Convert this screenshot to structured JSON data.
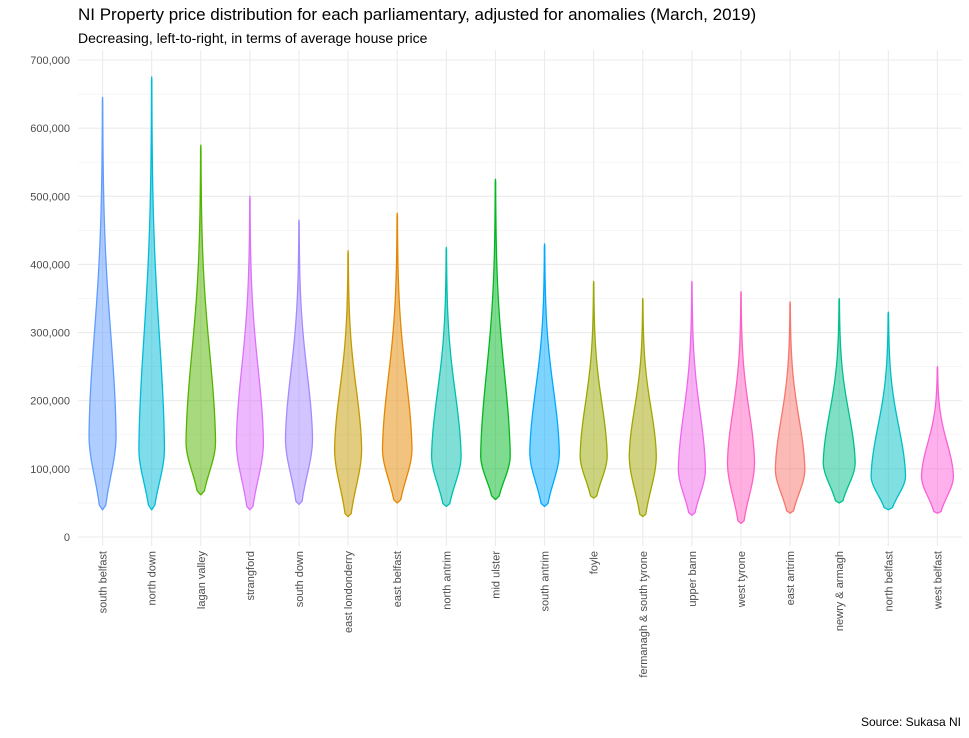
{
  "chart_data": {
    "type": "violin",
    "title": "NI Property price distribution for each parliamentary, adjusted for anomalies (March, 2019)",
    "subtitle": "Decreasing, left-to-right, in terms of average house price",
    "caption": "Source: Sukasa NI",
    "xlabel": "",
    "ylabel": "",
    "ylim": [
      0,
      700000
    ],
    "y_ticks": [
      0,
      100000,
      200000,
      300000,
      400000,
      500000,
      600000,
      700000
    ],
    "y_tick_labels": [
      "0",
      "100,000",
      "200,000",
      "300,000",
      "400,000",
      "500,000",
      "600,000",
      "700,000"
    ],
    "grid": true,
    "legend": "none",
    "categories": [
      "south belfast",
      "north down",
      "lagan valley",
      "strangford",
      "south down",
      "east londonderry",
      "east belfast",
      "north antrim",
      "mid ulster",
      "south antrim",
      "foyle",
      "fermanagh & south tyrone",
      "upper bann",
      "west tyrone",
      "east antrim",
      "newry & armagh",
      "north belfast",
      "west belfast"
    ],
    "colors": [
      "#619CFF",
      "#00BCD8",
      "#53B400",
      "#DB72FB",
      "#A58AFF",
      "#C49A00",
      "#E58700",
      "#00C0AF",
      "#00B81F",
      "#00A9FF",
      "#99A800",
      "#A3A500",
      "#F066EA",
      "#FF61C3",
      "#F8766D",
      "#00C08B",
      "#00BFC4",
      "#FB61D7"
    ],
    "series": [
      {
        "min": 40000,
        "max": 645000,
        "mode": 150000,
        "width": 0.55
      },
      {
        "min": 40000,
        "max": 675000,
        "mode": 130000,
        "width": 0.52
      },
      {
        "min": 62000,
        "max": 575000,
        "mode": 140000,
        "width": 0.6
      },
      {
        "min": 40000,
        "max": 500000,
        "mode": 140000,
        "width": 0.55
      },
      {
        "min": 48000,
        "max": 465000,
        "mode": 145000,
        "width": 0.55
      },
      {
        "min": 30000,
        "max": 420000,
        "mode": 130000,
        "width": 0.55
      },
      {
        "min": 50000,
        "max": 475000,
        "mode": 130000,
        "width": 0.6
      },
      {
        "min": 45000,
        "max": 425000,
        "mode": 120000,
        "width": 0.6
      },
      {
        "min": 55000,
        "max": 525000,
        "mode": 120000,
        "width": 0.6
      },
      {
        "min": 45000,
        "max": 430000,
        "mode": 125000,
        "width": 0.6
      },
      {
        "min": 57000,
        "max": 375000,
        "mode": 120000,
        "width": 0.55
      },
      {
        "min": 30000,
        "max": 350000,
        "mode": 120000,
        "width": 0.55
      },
      {
        "min": 32000,
        "max": 375000,
        "mode": 100000,
        "width": 0.55
      },
      {
        "min": 20000,
        "max": 360000,
        "mode": 110000,
        "width": 0.55
      },
      {
        "min": 35000,
        "max": 345000,
        "mode": 100000,
        "width": 0.6
      },
      {
        "min": 50000,
        "max": 350000,
        "mode": 110000,
        "width": 0.65
      },
      {
        "min": 40000,
        "max": 330000,
        "mode": 90000,
        "width": 0.7
      },
      {
        "min": 35000,
        "max": 250000,
        "mode": 90000,
        "width": 0.65
      }
    ]
  }
}
